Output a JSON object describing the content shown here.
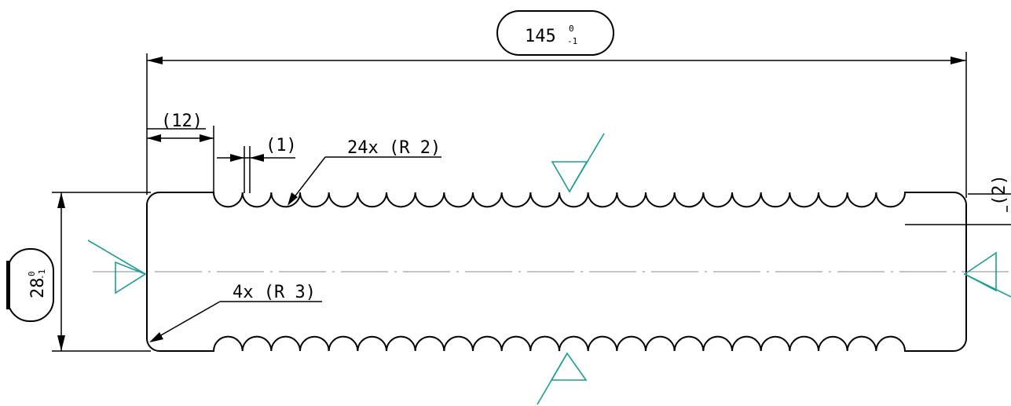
{
  "dimensions": {
    "length": {
      "nominal": "145",
      "upper_tol": "0",
      "lower_tol": "-1"
    },
    "width": {
      "nominal": "28",
      "upper_tol": "0",
      "lower_tol": "-1"
    },
    "left_flat": "(12)",
    "pitch_gap": "(1)",
    "depth": "(2)"
  },
  "callouts": {
    "notch_radius": "24x (R 2)",
    "corner_radius": "4x (R 3)"
  },
  "colors": {
    "outline": "#000000",
    "datum_symbol": "#1a9e96",
    "centerline": "#8a8a8a"
  },
  "notch_count": 24
}
